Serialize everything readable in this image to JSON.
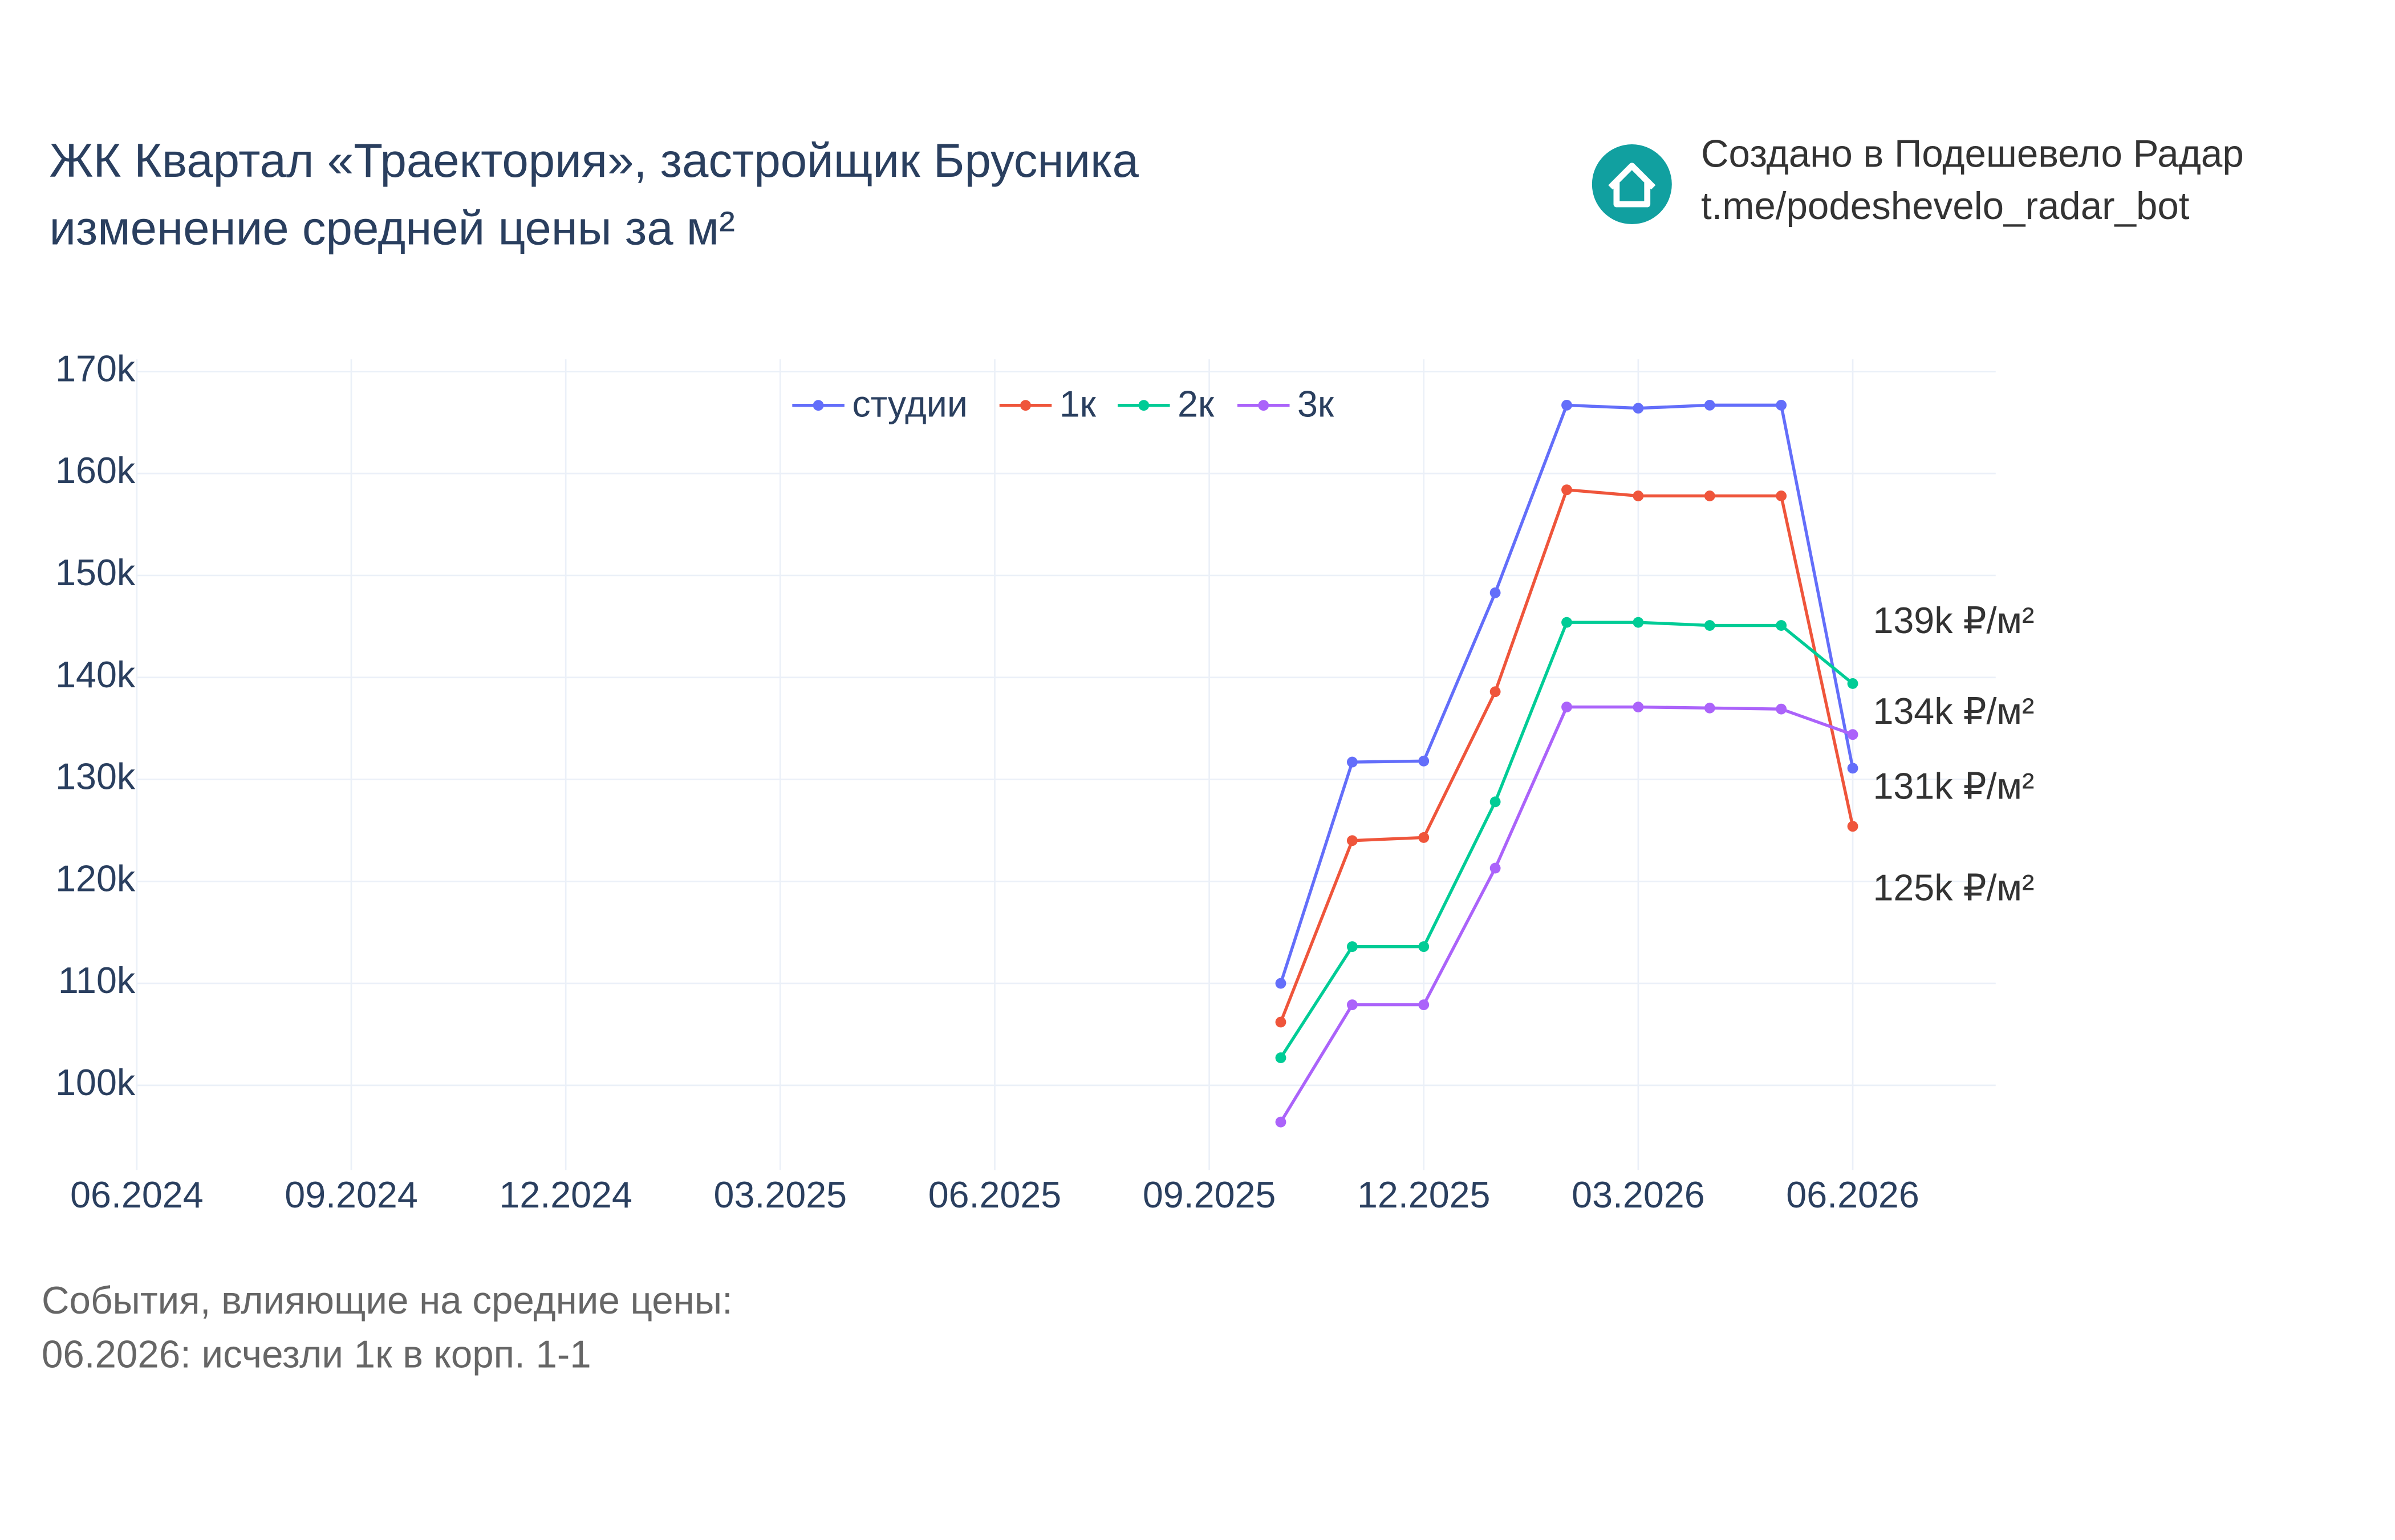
{
  "chart_data": {
    "type": "line",
    "title": [
      "ЖК Квартал «Траектория», застройщик Брусника",
      "изменение средней цены за м²"
    ],
    "watermark": [
      "Создано в Подешевело Радар",
      "t.me/podeshevelo_radar_bot"
    ],
    "notes": [
      "События, влияющие на средние цены:",
      "06.2026: исчезли 1к в корп. 1-1"
    ],
    "x": [
      "10.2025",
      "11.2025",
      "12.2025",
      "01.2026",
      "02.2026",
      "03.2026",
      "04.2026",
      "05.2026",
      "06.2026"
    ],
    "xlim": [
      "06.2024",
      "08.2026"
    ],
    "xticks": [
      "06.2024",
      "09.2024",
      "12.2024",
      "03.2025",
      "06.2025",
      "09.2025",
      "12.2025",
      "03.2026",
      "06.2026"
    ],
    "ylim": [
      91700,
      171200
    ],
    "yticks": [
      {
        "value": 100000,
        "label": "100k"
      },
      {
        "value": 110000,
        "label": "110k"
      },
      {
        "value": 120000,
        "label": "120k"
      },
      {
        "value": 130000,
        "label": "130k"
      },
      {
        "value": 140000,
        "label": "140k"
      },
      {
        "value": 150000,
        "label": "150k"
      },
      {
        "value": 160000,
        "label": "160k"
      },
      {
        "value": 170000,
        "label": "170k"
      }
    ],
    "grid": true,
    "legend": "top",
    "series": [
      {
        "name": "студии",
        "color": "#636efa",
        "values": [
          110000,
          131700,
          131800,
          148300,
          166700,
          166400,
          166700,
          166700,
          131100
        ]
      },
      {
        "name": "1к",
        "color": "#ef553b",
        "values": [
          106200,
          124000,
          124300,
          138600,
          158400,
          157800,
          157800,
          157800,
          125400
        ]
      },
      {
        "name": "2к",
        "color": "#00cc96",
        "values": [
          102700,
          113600,
          113600,
          127800,
          145400,
          145400,
          145100,
          145100,
          139400
        ]
      },
      {
        "name": "3к",
        "color": "#ab63fa",
        "values": [
          96400,
          107900,
          107900,
          121300,
          137100,
          137100,
          137000,
          136900,
          134400
        ]
      }
    ],
    "annotations": [
      "139k ₽/м²",
      "134k ₽/м²",
      "131k ₽/м²",
      "125k ₽/м²"
    ]
  }
}
